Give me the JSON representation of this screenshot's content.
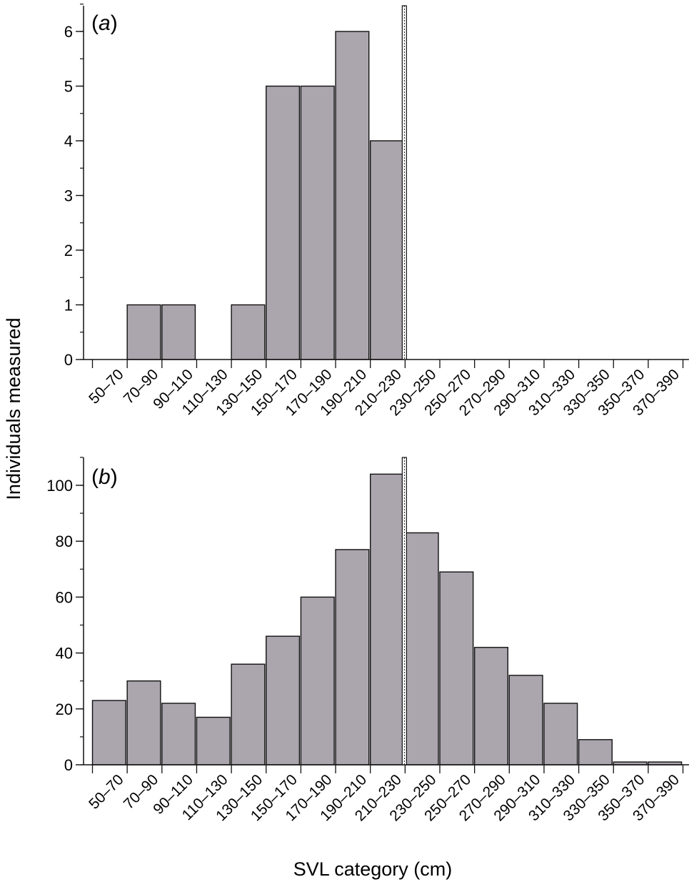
{
  "chart_data": [
    {
      "type": "bar",
      "panel_label": "(a)",
      "categories": [
        "50–70",
        "70–90",
        "90–110",
        "110–130",
        "130–150",
        "150–170",
        "170–190",
        "190–210",
        "210–230",
        "230–250",
        "250–270",
        "270–290",
        "290–310",
        "310–330",
        "330–350",
        "350–370",
        "370–390"
      ],
      "values": [
        0,
        1,
        1,
        0,
        1,
        5,
        5,
        6,
        4,
        0,
        0,
        0,
        0,
        0,
        0,
        0,
        0
      ],
      "ylim": [
        0,
        6.5
      ],
      "yticks": [
        0,
        1,
        2,
        3,
        4,
        5,
        6
      ],
      "ytick_labels": [
        "0",
        "1",
        "2",
        "3",
        "4",
        "5",
        "6"
      ],
      "marker_line_after_category": "210–230",
      "bar_color": "#aba5ad",
      "grid": false
    },
    {
      "type": "bar",
      "panel_label": "(b)",
      "categories": [
        "50–70",
        "70–90",
        "90–110",
        "110–130",
        "130–150",
        "150–170",
        "170–190",
        "190–210",
        "210–230",
        "230–250",
        "250–270",
        "270–290",
        "290–310",
        "310–330",
        "330–350",
        "350–370",
        "370–390"
      ],
      "values": [
        23,
        30,
        22,
        17,
        36,
        46,
        60,
        77,
        104,
        83,
        69,
        42,
        32,
        22,
        9,
        1,
        1
      ],
      "ylim": [
        0,
        110
      ],
      "yticks": [
        0,
        20,
        40,
        60,
        80,
        100
      ],
      "ytick_labels": [
        "0",
        "20",
        "40",
        "60",
        "80",
        "100"
      ],
      "marker_line_after_category": "210–230",
      "bar_color": "#aba5ad",
      "grid": false
    }
  ],
  "ylabel": "Individuals measured",
  "xlabel": "SVL category (cm)"
}
